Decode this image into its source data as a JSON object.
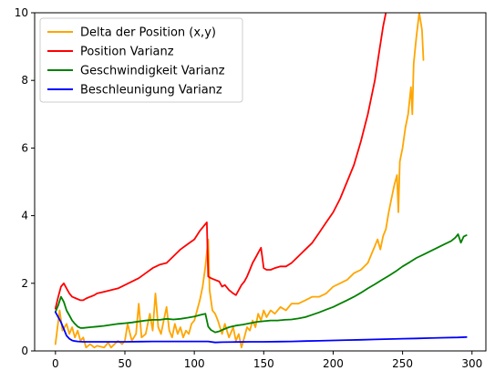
{
  "chart_data": {
    "type": "line",
    "title": "",
    "xlabel": "",
    "ylabel": "",
    "xlim": [
      -15,
      310
    ],
    "ylim": [
      0,
      10
    ],
    "xticks": [
      0,
      50,
      100,
      150,
      200,
      250,
      300
    ],
    "yticks": [
      0,
      2,
      4,
      6,
      8,
      10
    ],
    "grid": false,
    "legend_position": "top-left",
    "series": [
      {
        "name": "Delta der Position (x,y)",
        "color": "#ffa500",
        "points": [
          [
            0,
            0.2
          ],
          [
            3,
            1.2
          ],
          [
            5,
            0.6
          ],
          [
            8,
            0.8
          ],
          [
            10,
            0.5
          ],
          [
            12,
            0.7
          ],
          [
            14,
            0.4
          ],
          [
            16,
            0.6
          ],
          [
            18,
            0.3
          ],
          [
            20,
            0.4
          ],
          [
            22,
            0.1
          ],
          [
            25,
            0.2
          ],
          [
            28,
            0.1
          ],
          [
            30,
            0.15
          ],
          [
            35,
            0.1
          ],
          [
            38,
            0.25
          ],
          [
            40,
            0.1
          ],
          [
            45,
            0.3
          ],
          [
            48,
            0.2
          ],
          [
            50,
            0.3
          ],
          [
            52,
            0.8
          ],
          [
            55,
            0.3
          ],
          [
            58,
            0.5
          ],
          [
            60,
            1.4
          ],
          [
            62,
            0.4
          ],
          [
            65,
            0.5
          ],
          [
            68,
            1.1
          ],
          [
            70,
            0.6
          ],
          [
            72,
            1.7
          ],
          [
            74,
            0.7
          ],
          [
            76,
            0.5
          ],
          [
            78,
            0.9
          ],
          [
            80,
            1.3
          ],
          [
            82,
            0.6
          ],
          [
            84,
            0.4
          ],
          [
            86,
            0.8
          ],
          [
            88,
            0.5
          ],
          [
            90,
            0.7
          ],
          [
            92,
            0.4
          ],
          [
            94,
            0.6
          ],
          [
            96,
            0.5
          ],
          [
            98,
            0.8
          ],
          [
            100,
            0.9
          ],
          [
            102,
            1.2
          ],
          [
            104,
            1.5
          ],
          [
            106,
            1.9
          ],
          [
            108,
            2.5
          ],
          [
            110,
            3.3
          ],
          [
            111,
            1.8
          ],
          [
            113,
            1.2
          ],
          [
            115,
            1.1
          ],
          [
            117,
            0.9
          ],
          [
            120,
            0.5
          ],
          [
            122,
            0.8
          ],
          [
            125,
            0.4
          ],
          [
            128,
            0.7
          ],
          [
            130,
            0.3
          ],
          [
            132,
            0.5
          ],
          [
            134,
            0.1
          ],
          [
            136,
            0.4
          ],
          [
            138,
            0.7
          ],
          [
            140,
            0.6
          ],
          [
            142,
            0.9
          ],
          [
            144,
            0.7
          ],
          [
            146,
            1.1
          ],
          [
            148,
            0.9
          ],
          [
            150,
            1.2
          ],
          [
            152,
            1.0
          ],
          [
            155,
            1.2
          ],
          [
            158,
            1.1
          ],
          [
            162,
            1.3
          ],
          [
            166,
            1.2
          ],
          [
            170,
            1.4
          ],
          [
            175,
            1.4
          ],
          [
            180,
            1.5
          ],
          [
            185,
            1.6
          ],
          [
            190,
            1.6
          ],
          [
            195,
            1.7
          ],
          [
            200,
            1.9
          ],
          [
            205,
            2.0
          ],
          [
            210,
            2.1
          ],
          [
            215,
            2.3
          ],
          [
            220,
            2.4
          ],
          [
            225,
            2.6
          ],
          [
            228,
            2.9
          ],
          [
            230,
            3.1
          ],
          [
            232,
            3.3
          ],
          [
            234,
            3.0
          ],
          [
            236,
            3.4
          ],
          [
            238,
            3.6
          ],
          [
            240,
            4.1
          ],
          [
            242,
            4.5
          ],
          [
            244,
            4.9
          ],
          [
            246,
            5.2
          ],
          [
            247,
            4.1
          ],
          [
            248,
            5.6
          ],
          [
            250,
            6.0
          ],
          [
            252,
            6.6
          ],
          [
            254,
            7.0
          ],
          [
            256,
            7.8
          ],
          [
            257,
            7.0
          ],
          [
            258,
            8.5
          ],
          [
            260,
            9.3
          ],
          [
            262,
            10.0
          ],
          [
            264,
            9.5
          ],
          [
            265,
            8.6
          ]
        ]
      },
      {
        "name": "Position Varianz",
        "color": "#ff0000",
        "points": [
          [
            0,
            1.25
          ],
          [
            2,
            1.6
          ],
          [
            4,
            1.9
          ],
          [
            6,
            2.0
          ],
          [
            8,
            1.85
          ],
          [
            10,
            1.7
          ],
          [
            12,
            1.6
          ],
          [
            15,
            1.55
          ],
          [
            18,
            1.5
          ],
          [
            20,
            1.5
          ],
          [
            22,
            1.55
          ],
          [
            25,
            1.6
          ],
          [
            28,
            1.65
          ],
          [
            30,
            1.7
          ],
          [
            35,
            1.75
          ],
          [
            40,
            1.8
          ],
          [
            45,
            1.85
          ],
          [
            50,
            1.95
          ],
          [
            55,
            2.05
          ],
          [
            60,
            2.15
          ],
          [
            65,
            2.3
          ],
          [
            70,
            2.45
          ],
          [
            75,
            2.55
          ],
          [
            80,
            2.6
          ],
          [
            85,
            2.8
          ],
          [
            90,
            3.0
          ],
          [
            95,
            3.15
          ],
          [
            100,
            3.3
          ],
          [
            104,
            3.55
          ],
          [
            107,
            3.7
          ],
          [
            109,
            3.8
          ],
          [
            110,
            2.2
          ],
          [
            112,
            2.15
          ],
          [
            115,
            2.1
          ],
          [
            118,
            2.05
          ],
          [
            120,
            1.9
          ],
          [
            122,
            1.95
          ],
          [
            125,
            1.8
          ],
          [
            128,
            1.7
          ],
          [
            130,
            1.65
          ],
          [
            132,
            1.8
          ],
          [
            134,
            1.95
          ],
          [
            136,
            2.05
          ],
          [
            138,
            2.2
          ],
          [
            140,
            2.4
          ],
          [
            142,
            2.6
          ],
          [
            144,
            2.75
          ],
          [
            146,
            2.9
          ],
          [
            148,
            3.05
          ],
          [
            150,
            2.45
          ],
          [
            152,
            2.4
          ],
          [
            155,
            2.4
          ],
          [
            158,
            2.45
          ],
          [
            162,
            2.5
          ],
          [
            166,
            2.5
          ],
          [
            170,
            2.6
          ],
          [
            175,
            2.8
          ],
          [
            180,
            3.0
          ],
          [
            185,
            3.2
          ],
          [
            190,
            3.5
          ],
          [
            195,
            3.8
          ],
          [
            200,
            4.1
          ],
          [
            205,
            4.5
          ],
          [
            210,
            5.0
          ],
          [
            215,
            5.5
          ],
          [
            220,
            6.2
          ],
          [
            225,
            7.0
          ],
          [
            230,
            8.0
          ],
          [
            233,
            8.8
          ],
          [
            236,
            9.6
          ],
          [
            238,
            10.0
          ]
        ]
      },
      {
        "name": "Geschwindigkeit Varianz",
        "color": "#008000",
        "points": [
          [
            0,
            1.15
          ],
          [
            2,
            1.35
          ],
          [
            4,
            1.6
          ],
          [
            6,
            1.45
          ],
          [
            8,
            1.2
          ],
          [
            10,
            1.05
          ],
          [
            12,
            0.9
          ],
          [
            14,
            0.8
          ],
          [
            16,
            0.72
          ],
          [
            18,
            0.68
          ],
          [
            20,
            0.68
          ],
          [
            25,
            0.7
          ],
          [
            30,
            0.72
          ],
          [
            35,
            0.74
          ],
          [
            40,
            0.77
          ],
          [
            45,
            0.8
          ],
          [
            50,
            0.82
          ],
          [
            55,
            0.84
          ],
          [
            60,
            0.87
          ],
          [
            65,
            0.9
          ],
          [
            70,
            0.92
          ],
          [
            75,
            0.92
          ],
          [
            80,
            0.95
          ],
          [
            85,
            0.93
          ],
          [
            90,
            0.95
          ],
          [
            95,
            0.98
          ],
          [
            100,
            1.02
          ],
          [
            105,
            1.07
          ],
          [
            108,
            1.1
          ],
          [
            110,
            0.72
          ],
          [
            112,
            0.62
          ],
          [
            115,
            0.55
          ],
          [
            118,
            0.58
          ],
          [
            120,
            0.62
          ],
          [
            125,
            0.7
          ],
          [
            130,
            0.75
          ],
          [
            135,
            0.78
          ],
          [
            140,
            0.82
          ],
          [
            145,
            0.86
          ],
          [
            150,
            0.88
          ],
          [
            155,
            0.9
          ],
          [
            160,
            0.9
          ],
          [
            165,
            0.92
          ],
          [
            170,
            0.93
          ],
          [
            175,
            0.96
          ],
          [
            180,
            1.0
          ],
          [
            185,
            1.07
          ],
          [
            190,
            1.14
          ],
          [
            195,
            1.22
          ],
          [
            200,
            1.3
          ],
          [
            205,
            1.4
          ],
          [
            210,
            1.5
          ],
          [
            215,
            1.6
          ],
          [
            220,
            1.72
          ],
          [
            225,
            1.85
          ],
          [
            230,
            1.97
          ],
          [
            235,
            2.1
          ],
          [
            240,
            2.22
          ],
          [
            245,
            2.35
          ],
          [
            250,
            2.5
          ],
          [
            255,
            2.62
          ],
          [
            260,
            2.75
          ],
          [
            265,
            2.85
          ],
          [
            270,
            2.95
          ],
          [
            275,
            3.05
          ],
          [
            280,
            3.15
          ],
          [
            285,
            3.25
          ],
          [
            288,
            3.35
          ],
          [
            290,
            3.45
          ],
          [
            292,
            3.2
          ],
          [
            294,
            3.38
          ],
          [
            296,
            3.42
          ]
        ]
      },
      {
        "name": "Beschleunigung Varianz",
        "color": "#0000ff",
        "points": [
          [
            0,
            1.15
          ],
          [
            2,
            1.0
          ],
          [
            4,
            0.85
          ],
          [
            6,
            0.65
          ],
          [
            8,
            0.45
          ],
          [
            10,
            0.36
          ],
          [
            12,
            0.31
          ],
          [
            14,
            0.29
          ],
          [
            16,
            0.28
          ],
          [
            20,
            0.27
          ],
          [
            30,
            0.27
          ],
          [
            40,
            0.27
          ],
          [
            50,
            0.27
          ],
          [
            60,
            0.275
          ],
          [
            70,
            0.28
          ],
          [
            80,
            0.28
          ],
          [
            90,
            0.28
          ],
          [
            100,
            0.28
          ],
          [
            110,
            0.28
          ],
          [
            115,
            0.25
          ],
          [
            120,
            0.26
          ],
          [
            130,
            0.265
          ],
          [
            140,
            0.27
          ],
          [
            150,
            0.27
          ],
          [
            160,
            0.275
          ],
          [
            170,
            0.28
          ],
          [
            180,
            0.29
          ],
          [
            190,
            0.3
          ],
          [
            200,
            0.31
          ],
          [
            210,
            0.32
          ],
          [
            220,
            0.33
          ],
          [
            230,
            0.34
          ],
          [
            240,
            0.35
          ],
          [
            250,
            0.36
          ],
          [
            260,
            0.37
          ],
          [
            270,
            0.38
          ],
          [
            280,
            0.39
          ],
          [
            290,
            0.4
          ],
          [
            296,
            0.41
          ]
        ]
      }
    ]
  }
}
